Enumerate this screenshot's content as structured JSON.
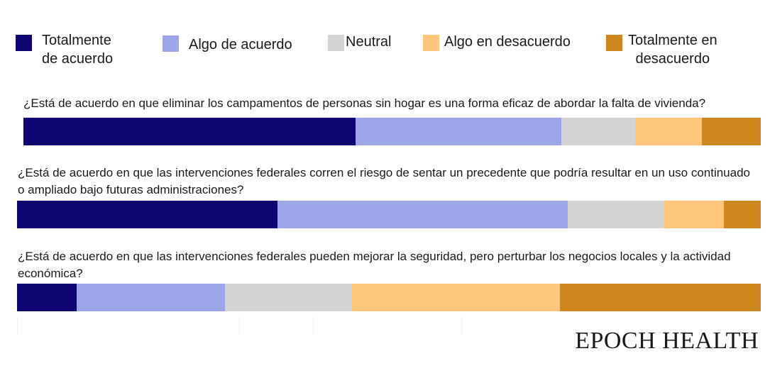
{
  "chart_data": {
    "type": "bar",
    "orientation": "horizontal",
    "stacked": true,
    "normalized_to_percent": true,
    "legend_position": "top",
    "legend": [
      {
        "key": "ta",
        "label_line1": "Totalmente",
        "label_line2": "de acuerdo",
        "color": "#0e0573"
      },
      {
        "key": "aa",
        "label_line1": "Algo de acuerdo",
        "label_line2": "",
        "color": "#9ba5e8"
      },
      {
        "key": "ne",
        "label_line1": "Neutral",
        "label_line2": "",
        "color": "#d4d4d4"
      },
      {
        "key": "ad",
        "label_line1": "Algo en desacuerdo",
        "label_line2": "",
        "color": "#fdc67a"
      },
      {
        "key": "td",
        "label_line1": "Totalmente en",
        "label_line2": "desacuerdo",
        "color": "#d0861f"
      }
    ],
    "questions": [
      {
        "text": "¿Está de acuerdo en que eliminar los campamentos de personas sin hogar es una forma eficaz de abordar la falta de vivienda?",
        "values": [
          45,
          28,
          10,
          9,
          8
        ]
      },
      {
        "text": "¿Está de acuerdo en que las intervenciones federales corren el riesgo de sentar un precedente que podría resultar en un uso continuado o ampliado bajo futuras administraciones?",
        "values": [
          35,
          39,
          13,
          8,
          5
        ]
      },
      {
        "text": "¿Está de acuerdo en que las intervenciones federales pueden mejorar la seguridad, pero perturbar los negocios locales y la actividad económica?",
        "values": [
          8,
          20,
          17,
          28,
          27
        ]
      }
    ]
  },
  "branding": {
    "logo_text": "EPOCH HEALTH"
  }
}
